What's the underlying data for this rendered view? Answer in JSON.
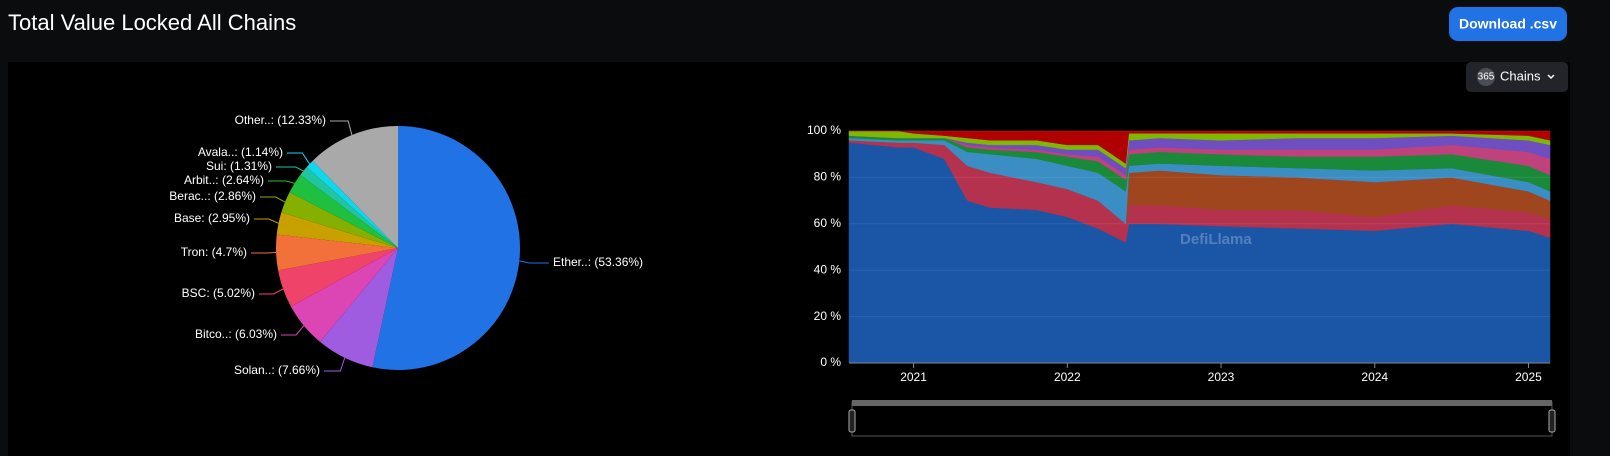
{
  "header": {
    "title": "Total Value Locked All Chains",
    "button": "Download .csv"
  },
  "controls": {
    "count": "365",
    "label": "Chains"
  },
  "chart_data": [
    {
      "type": "pie",
      "values": [
        53.36,
        7.66,
        6.03,
        5.02,
        4.7,
        2.95,
        2.86,
        2.64,
        1.31,
        1.14,
        12.33
      ],
      "value_labels": [
        "Ether..: (53.36%)",
        "Solan..: (7.66%)",
        "Bitco..: (6.03%)",
        "BSC: (5.02%)",
        "Tron: (4.7%)",
        "Base: (2.95%)",
        "Berac..: (2.86%)",
        "Arbit..: (2.64%)",
        "Sui: (1.31%)",
        "Avala..: (1.14%)",
        "Other..: (12.33%)"
      ],
      "colors": [
        "#2172e5",
        "#a05ce0",
        "#db45b4",
        "#f0436a",
        "#f2703a",
        "#c8a000",
        "#86b000",
        "#1fbf3f",
        "#20c6a0",
        "#12d6ec",
        "#a9a9a9"
      ]
    },
    {
      "type": "area",
      "stacked": true,
      "watermark": "DefiLlama",
      "x": [
        2020.58,
        2020.9,
        2021.0,
        2021.2,
        2021.35,
        2021.5,
        2021.8,
        2022.0,
        2022.2,
        2022.38,
        2022.4,
        2022.6,
        2023.0,
        2023.5,
        2024.0,
        2024.5,
        2025.0,
        2025.14
      ],
      "series": [
        {
          "color": "#1b55a6",
          "values": [
            95,
            93,
            93,
            88,
            70,
            67,
            66,
            63,
            58,
            52,
            60,
            60,
            59,
            58,
            57,
            60,
            57,
            54
          ]
        },
        {
          "color": "#b5324f",
          "values": [
            1,
            2,
            2,
            6,
            15,
            15,
            12,
            12,
            12,
            8,
            8,
            8,
            7,
            8,
            6,
            8,
            8,
            8
          ]
        },
        {
          "color": "#a0461e",
          "values": [
            0,
            0,
            0,
            0,
            0,
            0,
            0,
            0,
            0,
            0,
            14,
            15,
            15,
            14,
            15,
            12,
            9,
            8
          ]
        },
        {
          "color": "#3b8ec4",
          "values": [
            1,
            1,
            1,
            2,
            6,
            8,
            10,
            10,
            12,
            14,
            3,
            3,
            4,
            4,
            5,
            4,
            4,
            4
          ]
        },
        {
          "color": "#1a8a3a",
          "values": [
            1,
            1,
            1,
            1,
            2,
            2,
            3,
            4,
            5,
            5,
            5,
            5,
            5,
            5,
            6,
            6,
            7,
            7
          ]
        },
        {
          "color": "#c0427d",
          "values": [
            0,
            0,
            0,
            0,
            1,
            1,
            1,
            1,
            2,
            2,
            2,
            2,
            2,
            3,
            3,
            4,
            6,
            7
          ]
        },
        {
          "color": "#6f4ec0",
          "values": [
            0,
            0,
            0,
            0,
            1,
            1,
            2,
            2,
            3,
            3,
            4,
            4,
            4,
            5,
            5,
            4,
            5,
            6
          ]
        },
        {
          "color": "#7fb800",
          "values": [
            2,
            3,
            2,
            1,
            2,
            2,
            2,
            2,
            2,
            2,
            3,
            2,
            3,
            2,
            2,
            1,
            2,
            2
          ]
        },
        {
          "color": "#b00000",
          "values": [
            0,
            0,
            1,
            2,
            3,
            4,
            4,
            6,
            6,
            14,
            1,
            1,
            1,
            1,
            1,
            1,
            2,
            4
          ]
        }
      ],
      "xlim": [
        2020.58,
        2025.14
      ],
      "xticks": [
        2021,
        2022,
        2023,
        2024,
        2025
      ],
      "ylim": [
        0,
        100
      ],
      "yticks": [
        {
          "value": 0,
          "label": "0 %"
        },
        {
          "value": 20,
          "label": "20 %"
        },
        {
          "value": 40,
          "label": "40 %"
        },
        {
          "value": 60,
          "label": "60 %"
        },
        {
          "value": 80,
          "label": "80 %"
        },
        {
          "value": 100,
          "label": "100 %"
        }
      ],
      "grid": true
    }
  ]
}
